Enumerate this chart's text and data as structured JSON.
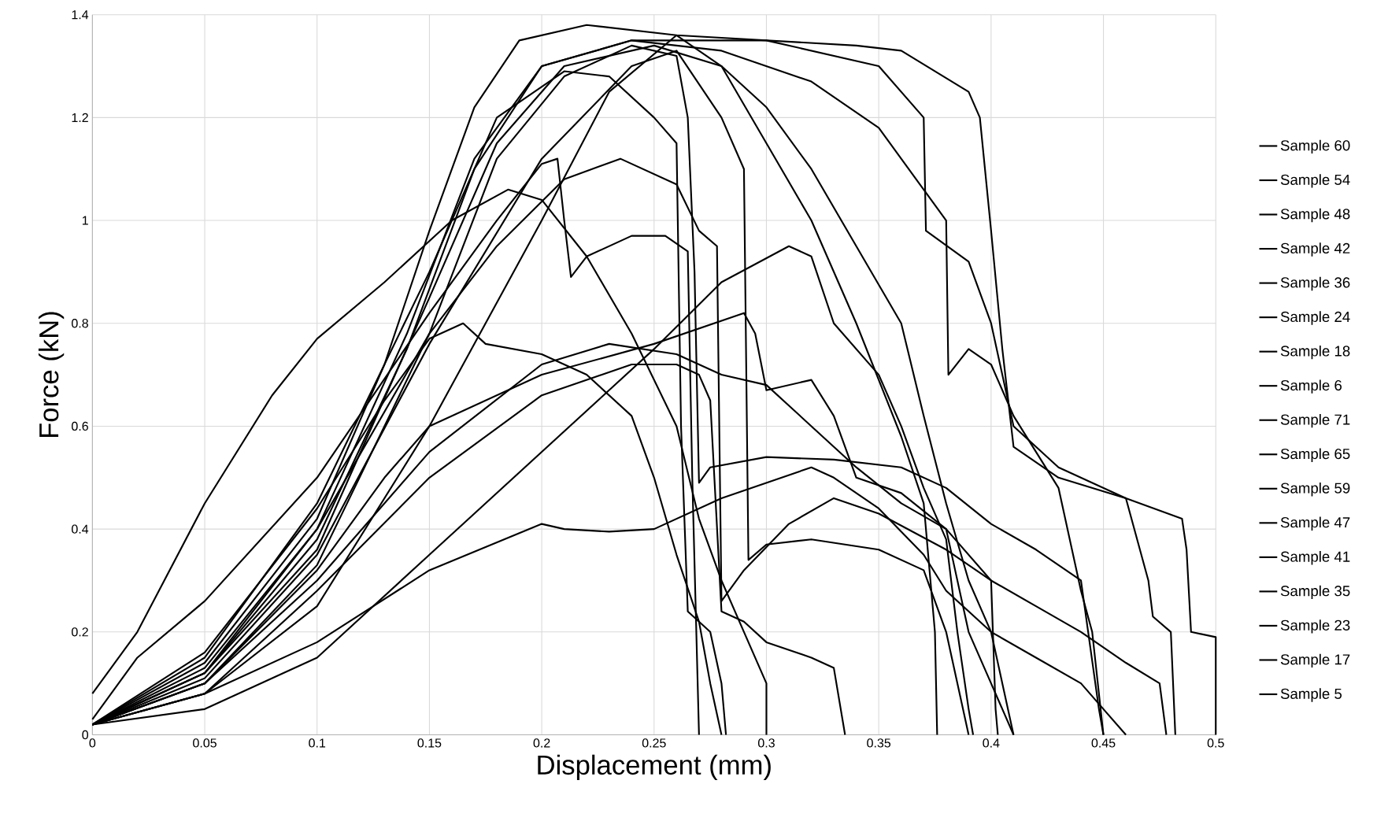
{
  "chart_data": {
    "type": "line",
    "xlabel": "Displacement (mm)",
    "ylabel": "Force (kN)",
    "xlim": [
      0,
      0.5
    ],
    "ylim": [
      0,
      1.4
    ],
    "xticks": [
      0,
      0.05,
      0.1,
      0.15,
      0.2,
      0.25,
      0.3,
      0.35,
      0.4,
      0.45,
      0.5
    ],
    "yticks": [
      0,
      0.2,
      0.4,
      0.6,
      0.8,
      1,
      1.2,
      1.4
    ],
    "grid": true,
    "legend": "right",
    "marker": "none",
    "line_style": "solid",
    "series": [
      {
        "name": "Sample 60",
        "color": "#000000",
        "x": [
          0,
          0.02,
          0.05,
          0.08,
          0.1,
          0.13,
          0.16,
          0.185,
          0.2,
          0.22,
          0.24,
          0.26,
          0.27,
          0.28,
          0.29,
          0.3,
          0.3
        ],
        "values": [
          0.08,
          0.2,
          0.45,
          0.66,
          0.77,
          0.88,
          1.0,
          1.06,
          1.04,
          0.93,
          0.78,
          0.6,
          0.42,
          0.3,
          0.2,
          0.1,
          0
        ]
      },
      {
        "name": "Sample 54",
        "color": "#000000",
        "x": [
          0,
          0.05,
          0.1,
          0.13,
          0.15,
          0.17,
          0.19,
          0.22,
          0.26,
          0.3,
          0.34,
          0.36,
          0.39,
          0.395,
          0.4,
          0.405,
          0.41,
          0.43,
          0.46,
          0.485,
          0.487,
          0.489,
          0.5,
          0.5
        ],
        "values": [
          0.02,
          0.14,
          0.42,
          0.72,
          0.98,
          1.22,
          1.35,
          1.38,
          1.36,
          1.35,
          1.34,
          1.33,
          1.25,
          1.2,
          0.98,
          0.75,
          0.56,
          0.5,
          0.46,
          0.42,
          0.36,
          0.2,
          0.19,
          0
        ]
      },
      {
        "name": "Sample 48",
        "color": "#000000",
        "x": [
          0,
          0.05,
          0.1,
          0.14,
          0.17,
          0.2,
          0.24,
          0.3,
          0.35,
          0.37,
          0.371,
          0.39,
          0.4,
          0.41,
          0.43,
          0.46,
          0.47,
          0.472,
          0.48,
          0.482
        ],
        "values": [
          0.02,
          0.12,
          0.38,
          0.75,
          1.1,
          1.3,
          1.35,
          1.35,
          1.3,
          1.2,
          0.98,
          0.92,
          0.8,
          0.6,
          0.52,
          0.46,
          0.3,
          0.23,
          0.2,
          0
        ]
      },
      {
        "name": "Sample 42",
        "color": "#000000",
        "x": [
          0,
          0.05,
          0.1,
          0.14,
          0.17,
          0.2,
          0.24,
          0.28,
          0.32,
          0.35,
          0.37,
          0.38,
          0.381,
          0.39,
          0.4,
          0.41,
          0.43,
          0.44,
          0.445,
          0.45
        ],
        "values": [
          0.02,
          0.13,
          0.4,
          0.78,
          1.12,
          1.3,
          1.35,
          1.33,
          1.27,
          1.18,
          1.06,
          1.0,
          0.7,
          0.75,
          0.72,
          0.62,
          0.48,
          0.28,
          0.2,
          0
        ]
      },
      {
        "name": "Sample 36",
        "color": "#000000",
        "x": [
          0,
          0.05,
          0.1,
          0.15,
          0.18,
          0.21,
          0.25,
          0.28,
          0.3,
          0.32,
          0.34,
          0.36,
          0.37,
          0.38,
          0.39,
          0.4,
          0.405,
          0.41
        ],
        "values": [
          0.02,
          0.12,
          0.36,
          0.85,
          1.15,
          1.3,
          1.34,
          1.3,
          1.22,
          1.1,
          0.95,
          0.8,
          0.62,
          0.45,
          0.3,
          0.2,
          0.1,
          0
        ]
      },
      {
        "name": "Sample 24",
        "color": "#000000",
        "x": [
          0,
          0.05,
          0.1,
          0.15,
          0.2,
          0.23,
          0.26,
          0.28,
          0.3,
          0.32,
          0.34,
          0.36,
          0.37,
          0.375,
          0.376
        ],
        "values": [
          0.02,
          0.08,
          0.25,
          0.6,
          1.0,
          1.25,
          1.36,
          1.3,
          1.15,
          1.0,
          0.8,
          0.58,
          0.45,
          0.2,
          0
        ]
      },
      {
        "name": "Sample 18",
        "color": "#000000",
        "x": [
          0,
          0.05,
          0.1,
          0.15,
          0.18,
          0.21,
          0.24,
          0.26,
          0.265,
          0.268,
          0.27,
          0.275,
          0.3,
          0.33,
          0.36,
          0.38,
          0.4,
          0.42,
          0.44,
          0.448,
          0.45
        ],
        "values": [
          0.02,
          0.1,
          0.33,
          0.78,
          1.12,
          1.28,
          1.34,
          1.32,
          1.2,
          0.9,
          0.49,
          0.52,
          0.54,
          0.535,
          0.52,
          0.48,
          0.41,
          0.36,
          0.3,
          0.05,
          0
        ]
      },
      {
        "name": "Sample 6",
        "color": "#000000",
        "x": [
          0,
          0.05,
          0.1,
          0.15,
          0.18,
          0.21,
          0.23,
          0.25,
          0.26,
          0.262,
          0.265,
          0.275,
          0.28,
          0.282
        ],
        "values": [
          0.02,
          0.15,
          0.45,
          0.9,
          1.2,
          1.29,
          1.28,
          1.2,
          1.15,
          0.6,
          0.24,
          0.2,
          0.1,
          0
        ]
      },
      {
        "name": "Sample 71",
        "color": "#000000",
        "x": [
          0,
          0.02,
          0.05,
          0.1,
          0.15,
          0.18,
          0.2,
          0.207,
          0.21,
          0.213,
          0.22,
          0.24,
          0.255,
          0.265,
          0.267,
          0.27
        ],
        "values": [
          0.03,
          0.15,
          0.26,
          0.5,
          0.82,
          1.0,
          1.11,
          1.12,
          1.0,
          0.89,
          0.93,
          0.97,
          0.97,
          0.94,
          0.5,
          0
        ]
      },
      {
        "name": "Sample 65",
        "color": "#000000",
        "x": [
          0,
          0.05,
          0.1,
          0.15,
          0.18,
          0.21,
          0.235,
          0.26,
          0.27,
          0.278,
          0.28,
          0.29,
          0.31,
          0.33,
          0.35,
          0.38,
          0.4,
          0.42,
          0.44,
          0.46,
          0.475,
          0.478
        ],
        "values": [
          0.02,
          0.12,
          0.4,
          0.78,
          0.95,
          1.08,
          1.12,
          1.07,
          0.98,
          0.95,
          0.26,
          0.32,
          0.41,
          0.46,
          0.43,
          0.36,
          0.3,
          0.25,
          0.2,
          0.14,
          0.1,
          0
        ]
      },
      {
        "name": "Sample 59",
        "color": "#000000",
        "x": [
          0,
          0.05,
          0.1,
          0.15,
          0.2,
          0.25,
          0.28,
          0.31,
          0.32,
          0.33,
          0.35,
          0.36,
          0.37,
          0.38,
          0.385,
          0.39,
          0.392
        ],
        "values": [
          0.02,
          0.05,
          0.15,
          0.35,
          0.55,
          0.75,
          0.88,
          0.95,
          0.93,
          0.8,
          0.7,
          0.6,
          0.48,
          0.38,
          0.2,
          0.05,
          0
        ]
      },
      {
        "name": "Sample 47",
        "color": "#000000",
        "x": [
          0,
          0.05,
          0.1,
          0.13,
          0.15,
          0.2,
          0.25,
          0.29,
          0.295,
          0.3,
          0.32,
          0.33,
          0.34,
          0.36,
          0.38,
          0.39,
          0.4,
          0.41
        ],
        "values": [
          0.02,
          0.1,
          0.32,
          0.5,
          0.6,
          0.7,
          0.76,
          0.82,
          0.78,
          0.67,
          0.69,
          0.62,
          0.5,
          0.47,
          0.4,
          0.2,
          0.1,
          0
        ]
      },
      {
        "name": "Sample 41",
        "color": "#000000",
        "x": [
          0,
          0.05,
          0.1,
          0.13,
          0.15,
          0.165,
          0.175,
          0.2,
          0.22,
          0.24,
          0.25,
          0.26,
          0.27,
          0.275,
          0.28
        ],
        "values": [
          0.02,
          0.16,
          0.44,
          0.65,
          0.77,
          0.8,
          0.76,
          0.74,
          0.7,
          0.62,
          0.5,
          0.35,
          0.22,
          0.1,
          0
        ]
      },
      {
        "name": "Sample 35",
        "color": "#000000",
        "x": [
          0,
          0.05,
          0.1,
          0.15,
          0.2,
          0.23,
          0.26,
          0.28,
          0.3,
          0.32,
          0.34,
          0.36,
          0.38,
          0.4,
          0.402,
          0.403
        ],
        "values": [
          0.02,
          0.1,
          0.3,
          0.55,
          0.72,
          0.76,
          0.74,
          0.7,
          0.68,
          0.6,
          0.52,
          0.45,
          0.4,
          0.3,
          0.05,
          0
        ]
      },
      {
        "name": "Sample 23",
        "color": "#000000",
        "x": [
          0,
          0.05,
          0.1,
          0.15,
          0.2,
          0.24,
          0.26,
          0.27,
          0.275,
          0.28,
          0.29,
          0.3,
          0.32,
          0.33,
          0.335
        ],
        "values": [
          0.02,
          0.08,
          0.28,
          0.5,
          0.66,
          0.72,
          0.72,
          0.7,
          0.65,
          0.24,
          0.22,
          0.18,
          0.15,
          0.13,
          0
        ]
      },
      {
        "name": "Sample 17",
        "color": "#000000",
        "x": [
          0,
          0.05,
          0.1,
          0.15,
          0.2,
          0.21,
          0.23,
          0.25,
          0.28,
          0.32,
          0.33,
          0.35,
          0.37,
          0.38,
          0.4,
          0.42,
          0.44,
          0.45,
          0.46
        ],
        "values": [
          0.02,
          0.08,
          0.18,
          0.32,
          0.41,
          0.4,
          0.395,
          0.4,
          0.46,
          0.52,
          0.5,
          0.44,
          0.35,
          0.28,
          0.2,
          0.15,
          0.1,
          0.05,
          0
        ]
      },
      {
        "name": "Sample 5",
        "color": "#000000",
        "x": [
          0,
          0.05,
          0.1,
          0.15,
          0.2,
          0.24,
          0.26,
          0.28,
          0.29,
          0.292,
          0.3,
          0.32,
          0.35,
          0.37,
          0.38,
          0.385,
          0.39
        ],
        "values": [
          0.02,
          0.11,
          0.35,
          0.76,
          1.12,
          1.3,
          1.33,
          1.2,
          1.1,
          0.34,
          0.37,
          0.38,
          0.36,
          0.32,
          0.2,
          0.1,
          0
        ]
      }
    ]
  }
}
